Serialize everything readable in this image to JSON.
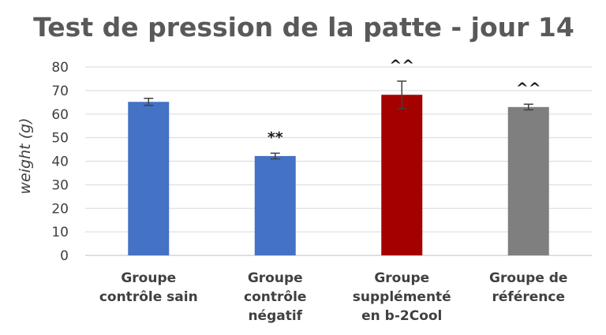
{
  "chart_data": {
    "type": "bar",
    "title": "Test de pression de la patte - jour 14",
    "xlabel": "",
    "ylabel": "weight (g)",
    "ylim": [
      0,
      80
    ],
    "yticks": [
      0,
      10,
      20,
      30,
      40,
      50,
      60,
      70,
      80
    ],
    "grid": true,
    "categories": [
      [
        "Groupe",
        "contrôle sain"
      ],
      [
        "Groupe",
        "contrôle",
        "négatif"
      ],
      [
        "Groupe",
        "supplémenté",
        "en b-2Cool"
      ],
      [
        "Groupe de",
        "référence"
      ]
    ],
    "values": [
      65.2,
      42.2,
      68.2,
      63.0
    ],
    "error_bars": [
      1.5,
      1.2,
      5.8,
      1.2
    ],
    "annotations": [
      "",
      "**",
      "^^",
      "^^"
    ],
    "colors": [
      "#4472C4",
      "#4472C4",
      "#A50000",
      "#7F7F7F"
    ]
  }
}
